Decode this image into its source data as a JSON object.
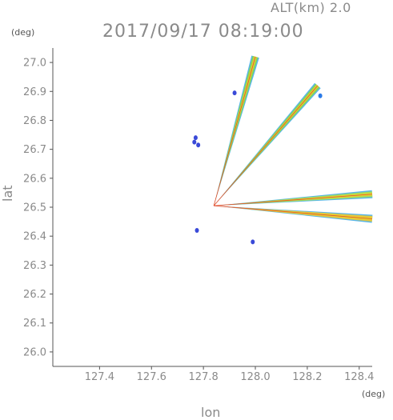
{
  "header": {
    "altitude": "ALT(km) 2.0",
    "timestamp": "2017/09/17 08:19:00"
  },
  "chart_data": {
    "type": "scatter",
    "title": "2017/09/17 08:19:00",
    "subtitle": "ALT(km) 2.0",
    "xlabel": "lon",
    "ylabel": "lat",
    "x_unit": "(deg)",
    "y_unit": "(deg)",
    "xlim": [
      127.22,
      128.45
    ],
    "ylim": [
      25.95,
      27.05
    ],
    "xticks": [
      127.4,
      127.6,
      127.8,
      128.0,
      128.2,
      128.4
    ],
    "xtick_labels": [
      "127.4",
      "127.6",
      "127.8",
      "128.0",
      "128.2",
      "128.4"
    ],
    "yticks": [
      26.0,
      26.1,
      26.2,
      26.3,
      26.4,
      26.5,
      26.6,
      26.7,
      26.8,
      26.9,
      27.0
    ],
    "ytick_labels": [
      "26.0",
      "26.1",
      "26.2",
      "26.3",
      "26.4",
      "26.5",
      "26.6",
      "26.7",
      "26.8",
      "26.9",
      "27.0"
    ],
    "origin": {
      "lon": 127.84,
      "lat": 26.505
    },
    "rays": [
      {
        "end": [
          128.0,
          27.02
        ],
        "color": "#8ad84a"
      },
      {
        "end": [
          128.24,
          26.92
        ],
        "color": "#8ad84a"
      },
      {
        "end": [
          128.45,
          26.545
        ],
        "color": "#a8e050"
      },
      {
        "end": [
          128.45,
          26.46
        ],
        "color": "#f0c830"
      }
    ],
    "blobs": [
      {
        "lon": 127.92,
        "lat": 26.895,
        "color": "#3a4ad8"
      },
      {
        "lon": 128.25,
        "lat": 26.885,
        "color": "#2a7ae8"
      },
      {
        "lon": 127.77,
        "lat": 26.74,
        "color": "#3a4ad8"
      },
      {
        "lon": 127.765,
        "lat": 26.725,
        "color": "#3a4ad8"
      },
      {
        "lon": 127.78,
        "lat": 26.715,
        "color": "#3a4ad8"
      },
      {
        "lon": 127.775,
        "lat": 26.42,
        "color": "#3a4ad8"
      },
      {
        "lon": 127.99,
        "lat": 26.38,
        "color": "#3a4ad8"
      }
    ],
    "grid": false
  }
}
